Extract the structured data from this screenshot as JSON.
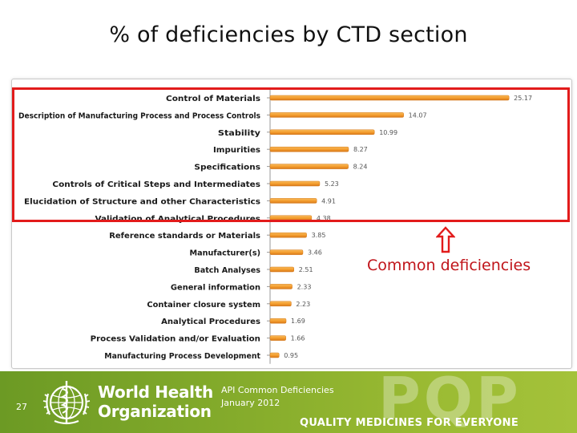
{
  "slide": {
    "title": "% of deficiencies by CTD section",
    "callout": "Common deficiencies",
    "footer": {
      "slide_number": "27",
      "org_line1": "World Health",
      "org_line2": "Organization",
      "caption_line1": "API Common Deficiencies",
      "caption_line2": "January 2012",
      "brand_mark": "PQP",
      "tagline": "QUALITY MEDICINES FOR EVERYONE"
    }
  },
  "colors": {
    "bar": "#f39b2c",
    "bar_dark": "#d5781a",
    "highlight": "#e21b1b",
    "callout_text": "#c0141a",
    "footer_green": "#87ad2c"
  },
  "icons": {
    "arrow": "up-arrow-icon",
    "emblem": "who-emblem-icon"
  },
  "chart_data": {
    "type": "bar",
    "orientation": "horizontal",
    "title": "",
    "xlabel": "",
    "ylabel": "",
    "xlim": [
      0,
      26
    ],
    "grid": false,
    "legend": "none",
    "categories": [
      "Control of Materials",
      "Description of Manufacturing Process and Process Controls",
      "Stability",
      "Impurities",
      "Specifications",
      "Controls of Critical Steps and Intermediates",
      "Elucidation of Structure and other Characteristics",
      "Validation of Analytical Procedures",
      "Reference standards or Materials",
      "Manufacturer(s)",
      "Batch Analyses",
      "General information",
      "Container closure system",
      "Analytical Procedures",
      "Process Validation and/or Evaluation",
      "Manufacturing Process Development"
    ],
    "values": [
      25.17,
      14.07,
      10.99,
      8.27,
      8.24,
      5.23,
      4.91,
      4.38,
      3.85,
      3.46,
      2.51,
      2.33,
      2.23,
      1.69,
      1.66,
      0.95
    ],
    "value_labels": [
      "25.17",
      "14.07",
      "10.99",
      "8.27",
      "8.24",
      "5.23",
      "4.91",
      "4.38",
      "3.85",
      "3.46",
      "2.51",
      "2.33",
      "2.23",
      "1.69",
      "1.66",
      "0.95"
    ],
    "highlighted_count": 8
  }
}
